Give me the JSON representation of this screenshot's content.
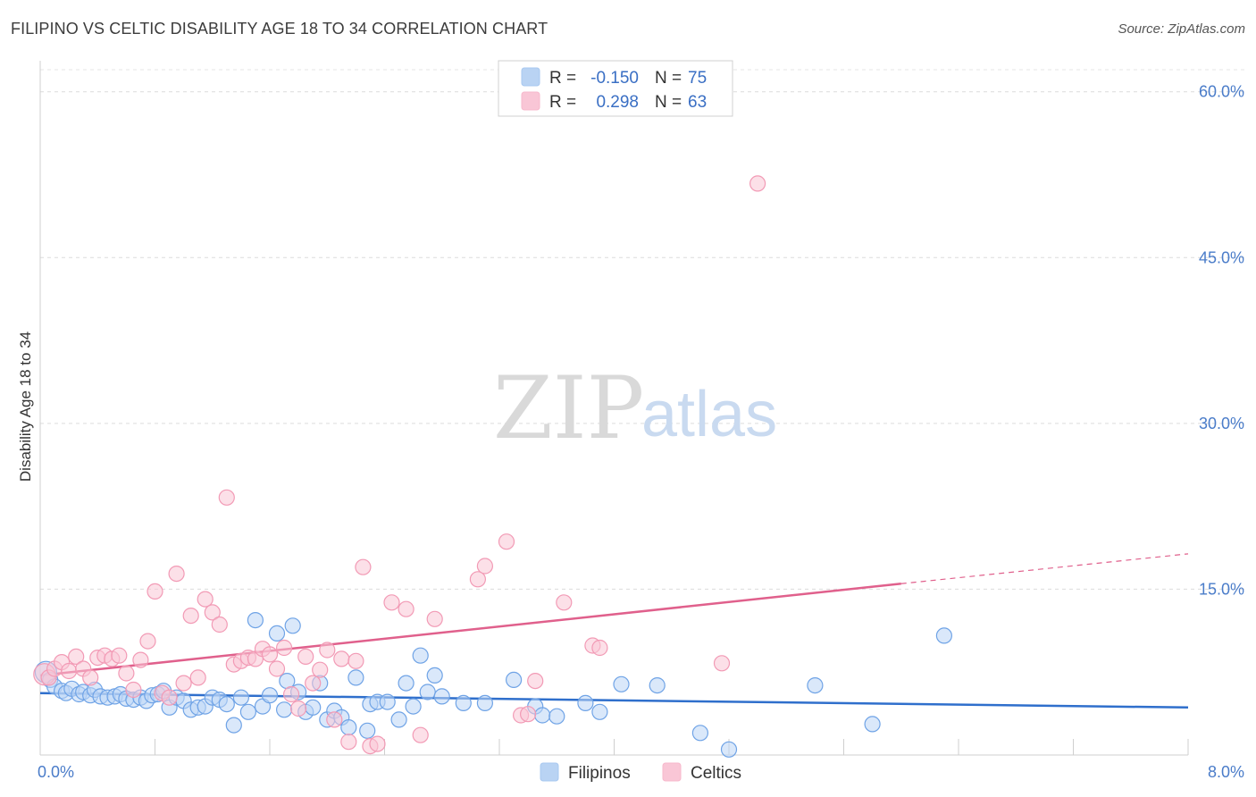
{
  "header": {
    "title": "FILIPINO VS CELTIC DISABILITY AGE 18 TO 34 CORRELATION CHART",
    "source": "Source: ZipAtlas.com"
  },
  "watermark": {
    "zip": "ZIP",
    "atlas": "atlas"
  },
  "legend_top": {
    "rows": [
      {
        "r_label": "R =",
        "r_value": "-0.150",
        "n_label": "N =",
        "n_value": "75",
        "color": "#a8c8f0"
      },
      {
        "r_label": "R =",
        "r_value": "0.298",
        "n_label": "N =",
        "n_value": "63",
        "color": "#f7b8cc"
      }
    ]
  },
  "legend_bottom": {
    "items": [
      {
        "label": "Filipinos",
        "color": "#a8c8f0"
      },
      {
        "label": "Celtics",
        "color": "#f7b8cc"
      }
    ]
  },
  "chart_data": {
    "type": "scatter",
    "title": "FILIPINO VS CELTIC DISABILITY AGE 18 TO 34 CORRELATION CHART",
    "xlabel": "",
    "ylabel": "Disability Age 18 to 34",
    "xlim": [
      0,
      8
    ],
    "ylim": [
      0,
      62
    ],
    "x_tick_labels": [
      "0.0%",
      "8.0%"
    ],
    "y_ticks": [
      15,
      30,
      45,
      60
    ],
    "y_tick_labels": [
      "15.0%",
      "30.0%",
      "45.0%",
      "60.0%"
    ],
    "grid": true,
    "legend_position": "top-center",
    "series": [
      {
        "name": "Filipinos",
        "color": "#6fa3e6",
        "fill": "#bcd5f5",
        "trend": {
          "x": [
            0,
            8
          ],
          "y": [
            5.6,
            4.3
          ],
          "color": "#2f6fcc"
        },
        "points": [
          [
            0.04,
            7.5
          ],
          [
            0.07,
            6.8
          ],
          [
            0.1,
            6.2
          ],
          [
            0.15,
            5.8
          ],
          [
            0.18,
            5.6
          ],
          [
            0.22,
            6.0
          ],
          [
            0.27,
            5.5
          ],
          [
            0.3,
            5.7
          ],
          [
            0.35,
            5.4
          ],
          [
            0.38,
            5.9
          ],
          [
            0.42,
            5.3
          ],
          [
            0.47,
            5.2
          ],
          [
            0.52,
            5.3
          ],
          [
            0.56,
            5.5
          ],
          [
            0.6,
            5.1
          ],
          [
            0.65,
            5.0
          ],
          [
            0.7,
            5.2
          ],
          [
            0.74,
            4.9
          ],
          [
            0.78,
            5.4
          ],
          [
            0.82,
            5.5
          ],
          [
            0.86,
            5.8
          ],
          [
            0.9,
            4.3
          ],
          [
            0.95,
            5.2
          ],
          [
            1.0,
            4.9
          ],
          [
            1.05,
            4.1
          ],
          [
            1.1,
            4.3
          ],
          [
            1.15,
            4.4
          ],
          [
            1.2,
            5.2
          ],
          [
            1.25,
            5.0
          ],
          [
            1.3,
            4.6
          ],
          [
            1.35,
            2.7
          ],
          [
            1.4,
            5.2
          ],
          [
            1.45,
            3.9
          ],
          [
            1.5,
            12.2
          ],
          [
            1.55,
            4.4
          ],
          [
            1.6,
            5.4
          ],
          [
            1.65,
            11.0
          ],
          [
            1.7,
            4.1
          ],
          [
            1.72,
            6.7
          ],
          [
            1.76,
            11.7
          ],
          [
            1.8,
            5.7
          ],
          [
            1.85,
            3.9
          ],
          [
            1.9,
            4.3
          ],
          [
            1.95,
            6.5
          ],
          [
            2.0,
            3.2
          ],
          [
            2.05,
            4.0
          ],
          [
            2.1,
            3.4
          ],
          [
            2.15,
            2.5
          ],
          [
            2.2,
            7.0
          ],
          [
            2.28,
            2.2
          ],
          [
            2.3,
            4.6
          ],
          [
            2.35,
            4.8
          ],
          [
            2.42,
            4.8
          ],
          [
            2.5,
            3.2
          ],
          [
            2.55,
            6.5
          ],
          [
            2.6,
            4.4
          ],
          [
            2.65,
            9.0
          ],
          [
            2.7,
            5.7
          ],
          [
            2.75,
            7.2
          ],
          [
            2.8,
            5.3
          ],
          [
            2.95,
            4.7
          ],
          [
            3.1,
            4.7
          ],
          [
            3.3,
            6.8
          ],
          [
            3.45,
            4.4
          ],
          [
            3.5,
            3.6
          ],
          [
            3.6,
            3.5
          ],
          [
            3.8,
            4.7
          ],
          [
            3.9,
            3.9
          ],
          [
            4.05,
            6.4
          ],
          [
            4.3,
            6.3
          ],
          [
            4.6,
            2.0
          ],
          [
            4.8,
            0.5
          ],
          [
            5.4,
            6.3
          ],
          [
            5.8,
            2.8
          ],
          [
            6.3,
            10.8
          ]
        ]
      },
      {
        "name": "Celtics",
        "color": "#f29ab5",
        "fill": "#f9c6d6",
        "trend": {
          "x": [
            0,
            6.0
          ],
          "y": [
            7.2,
            15.5
          ],
          "dashed_to": [
            8,
            18.2
          ],
          "color": "#e0608c"
        },
        "points": [
          [
            0.03,
            7.3
          ],
          [
            0.06,
            7.0
          ],
          [
            0.1,
            7.8
          ],
          [
            0.15,
            8.4
          ],
          [
            0.2,
            7.6
          ],
          [
            0.25,
            8.9
          ],
          [
            0.3,
            7.8
          ],
          [
            0.35,
            7.0
          ],
          [
            0.4,
            8.8
          ],
          [
            0.45,
            9.0
          ],
          [
            0.5,
            8.7
          ],
          [
            0.55,
            9.0
          ],
          [
            0.6,
            7.4
          ],
          [
            0.65,
            5.9
          ],
          [
            0.7,
            8.6
          ],
          [
            0.75,
            10.3
          ],
          [
            0.8,
            14.8
          ],
          [
            0.85,
            5.6
          ],
          [
            0.9,
            5.2
          ],
          [
            0.95,
            16.4
          ],
          [
            1.0,
            6.5
          ],
          [
            1.05,
            12.6
          ],
          [
            1.1,
            7.0
          ],
          [
            1.15,
            14.1
          ],
          [
            1.2,
            12.9
          ],
          [
            1.25,
            11.8
          ],
          [
            1.3,
            23.3
          ],
          [
            1.35,
            8.2
          ],
          [
            1.4,
            8.5
          ],
          [
            1.45,
            8.8
          ],
          [
            1.5,
            8.7
          ],
          [
            1.55,
            9.6
          ],
          [
            1.6,
            9.1
          ],
          [
            1.65,
            7.8
          ],
          [
            1.7,
            9.7
          ],
          [
            1.75,
            5.5
          ],
          [
            1.8,
            4.2
          ],
          [
            1.85,
            8.9
          ],
          [
            1.9,
            6.5
          ],
          [
            1.95,
            7.7
          ],
          [
            2.0,
            9.5
          ],
          [
            2.05,
            3.2
          ],
          [
            2.1,
            8.7
          ],
          [
            2.15,
            1.2
          ],
          [
            2.2,
            8.5
          ],
          [
            2.25,
            17.0
          ],
          [
            2.3,
            0.8
          ],
          [
            2.35,
            1.0
          ],
          [
            2.45,
            13.8
          ],
          [
            2.55,
            13.2
          ],
          [
            2.65,
            1.8
          ],
          [
            2.75,
            12.3
          ],
          [
            3.05,
            15.9
          ],
          [
            3.1,
            17.1
          ],
          [
            3.25,
            19.3
          ],
          [
            3.35,
            3.6
          ],
          [
            3.45,
            6.7
          ],
          [
            3.65,
            13.8
          ],
          [
            3.85,
            9.9
          ],
          [
            3.9,
            9.7
          ],
          [
            5.0,
            51.7
          ],
          [
            4.75,
            8.3
          ],
          [
            3.4,
            3.7
          ]
        ]
      }
    ]
  }
}
